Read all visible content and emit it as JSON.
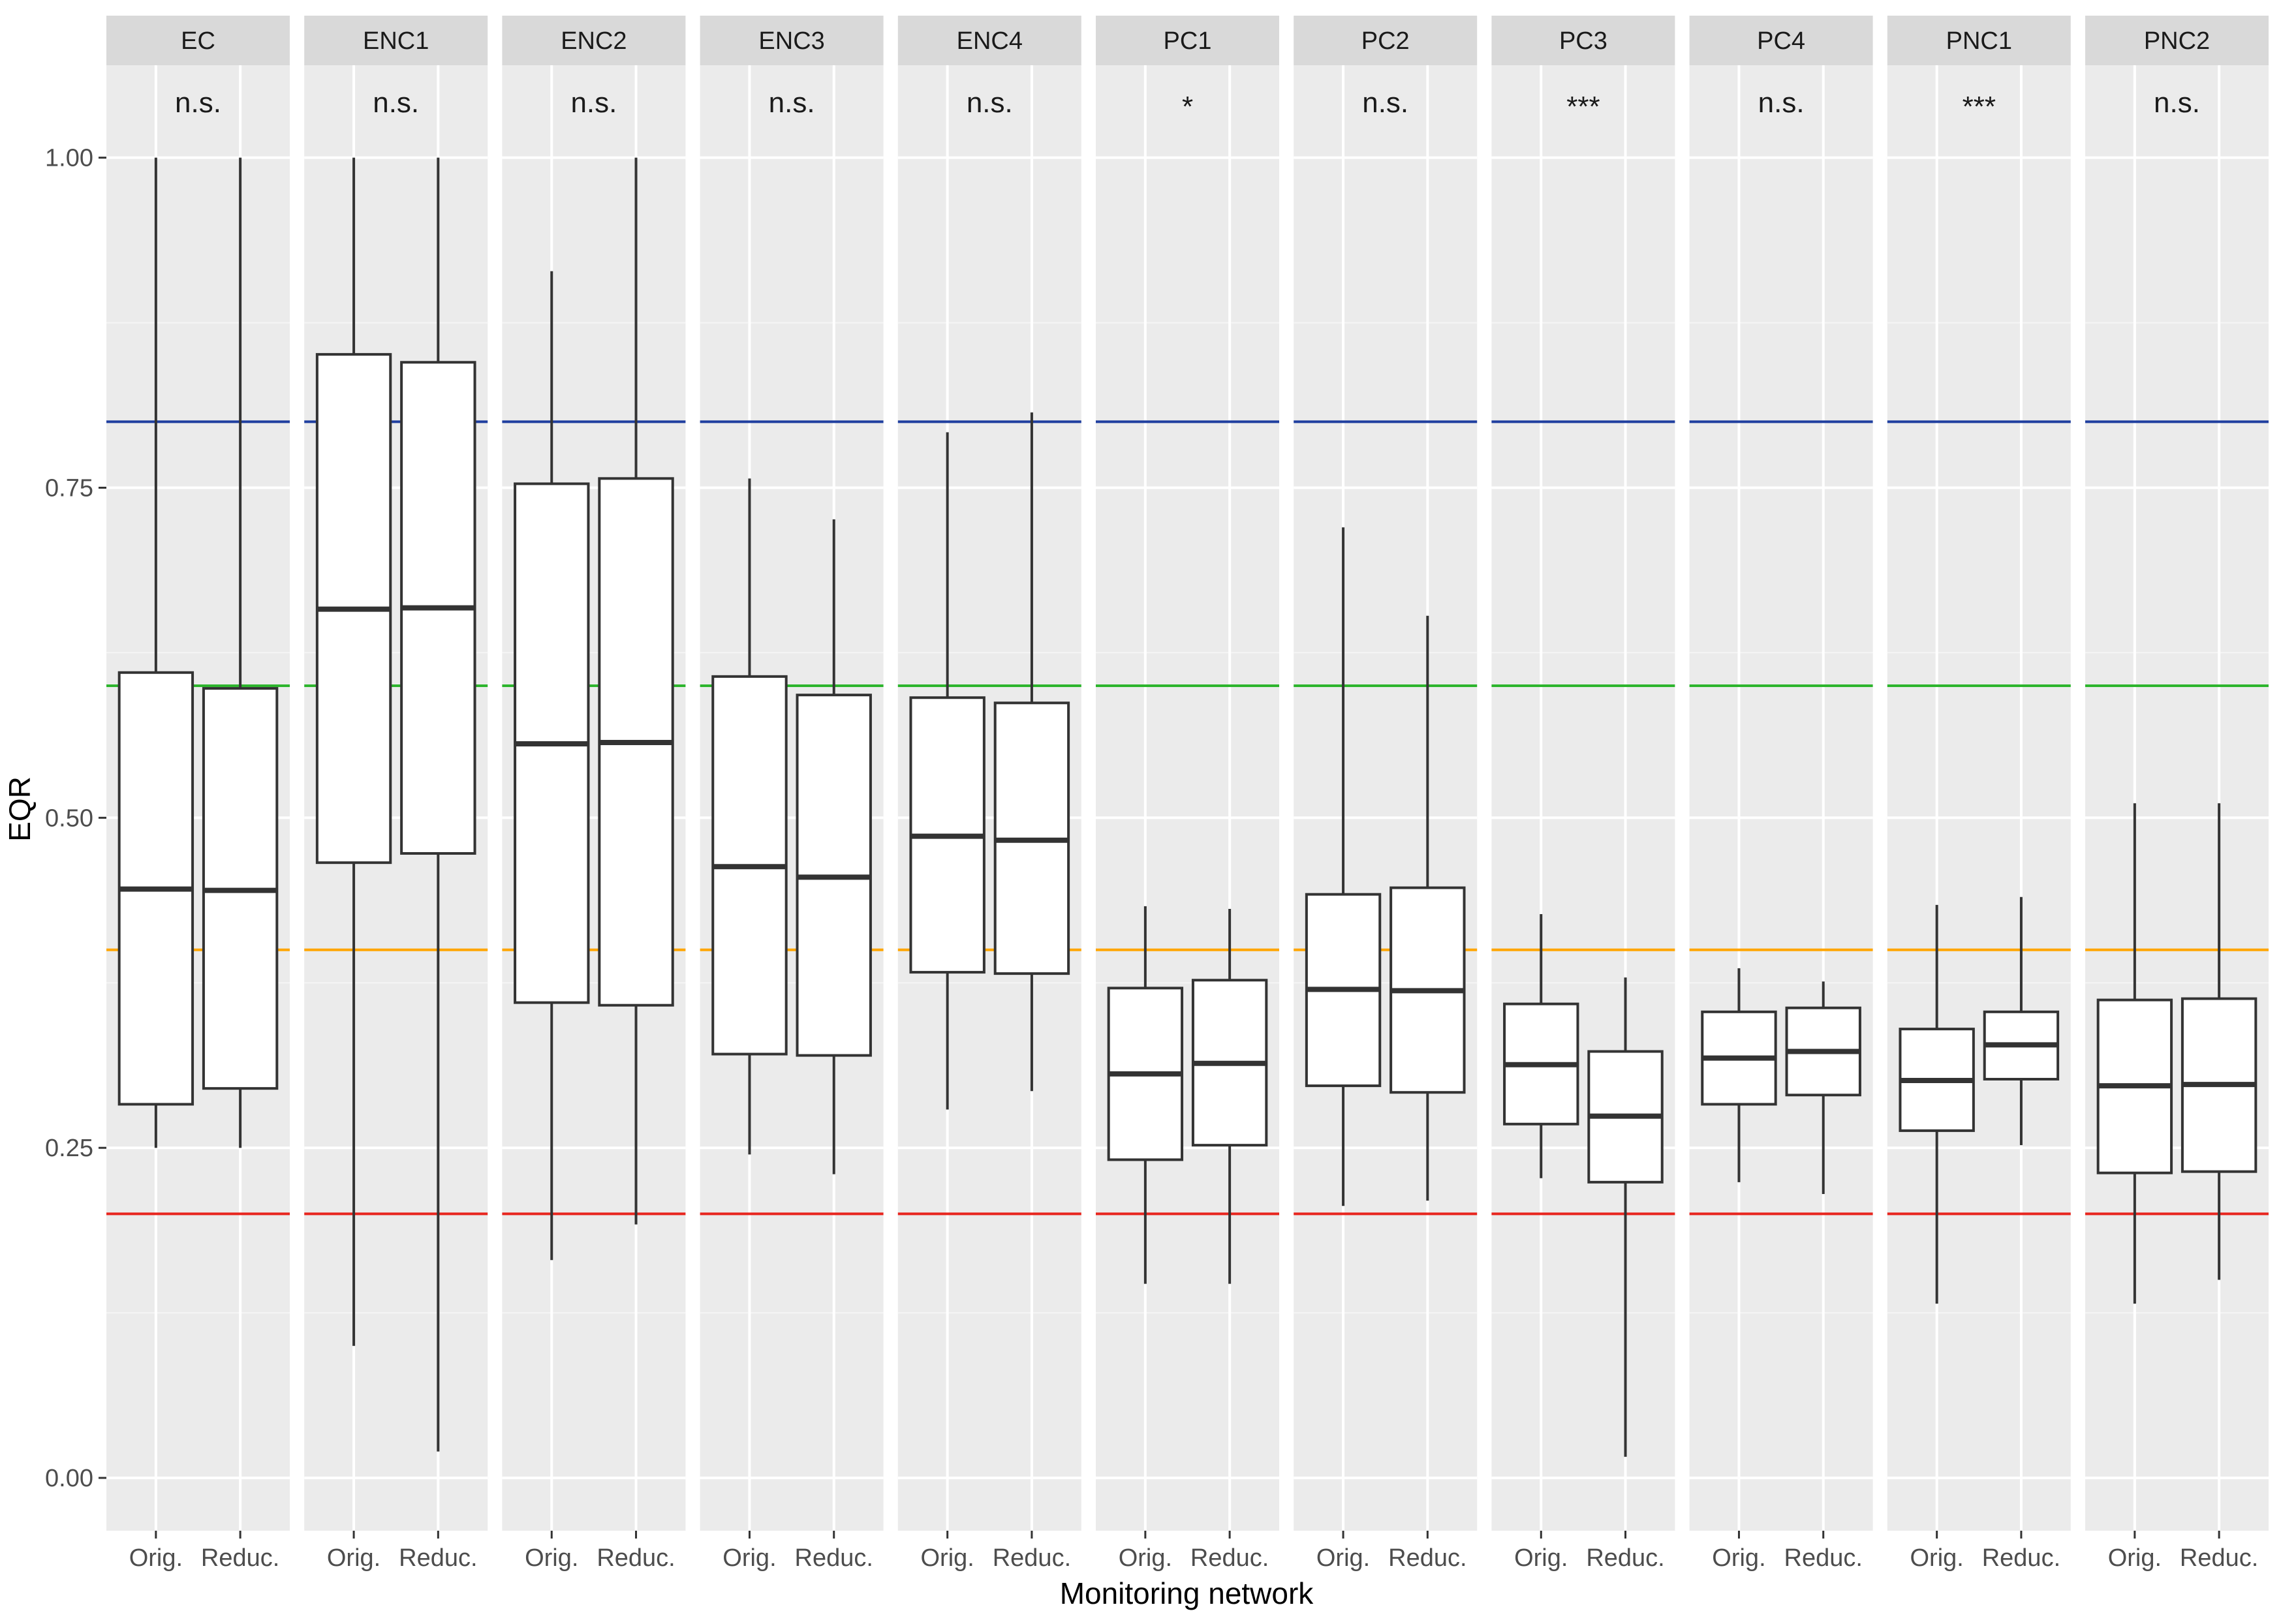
{
  "chart_data": {
    "type": "box",
    "xlabel": "Monitoring network",
    "ylabel": "EQR",
    "ylim": [
      -0.04,
      1.07
    ],
    "yticks": [
      0.0,
      0.25,
      0.5,
      0.75,
      1.0
    ],
    "ytick_labels": [
      "0.00",
      "0.25",
      "0.50",
      "0.75",
      "1.00"
    ],
    "categories": [
      "Orig.",
      "Reduc."
    ],
    "grid": true,
    "background": "#EBEBEB",
    "strip_background": "#D9D9D9",
    "reference_lines": [
      {
        "y": 0.8,
        "color": "#1F3F9F"
      },
      {
        "y": 0.6,
        "color": "#2DB52D"
      },
      {
        "y": 0.4,
        "color": "#FFA500"
      },
      {
        "y": 0.2,
        "color": "#E8251E"
      }
    ],
    "panels": [
      {
        "name": "EC",
        "significance": "n.s.",
        "boxes": [
          {
            "group": "Orig.",
            "lower_whisker": 0.25,
            "q1": 0.283,
            "median": 0.446,
            "q3": 0.61,
            "upper_whisker": 1.0
          },
          {
            "group": "Reduc.",
            "lower_whisker": 0.25,
            "q1": 0.295,
            "median": 0.445,
            "q3": 0.598,
            "upper_whisker": 1.0
          }
        ]
      },
      {
        "name": "ENC1",
        "significance": "n.s.",
        "boxes": [
          {
            "group": "Orig.",
            "lower_whisker": 0.1,
            "q1": 0.466,
            "median": 0.658,
            "q3": 0.851,
            "upper_whisker": 1.0
          },
          {
            "group": "Reduc.",
            "lower_whisker": 0.02,
            "q1": 0.473,
            "median": 0.659,
            "q3": 0.845,
            "upper_whisker": 1.0
          }
        ]
      },
      {
        "name": "ENC2",
        "significance": "n.s.",
        "boxes": [
          {
            "group": "Orig.",
            "lower_whisker": 0.165,
            "q1": 0.36,
            "median": 0.556,
            "q3": 0.753,
            "upper_whisker": 0.914
          },
          {
            "group": "Reduc.",
            "lower_whisker": 0.192,
            "q1": 0.358,
            "median": 0.557,
            "q3": 0.757,
            "upper_whisker": 1.0
          }
        ]
      },
      {
        "name": "ENC3",
        "significance": "n.s.",
        "boxes": [
          {
            "group": "Orig.",
            "lower_whisker": 0.245,
            "q1": 0.321,
            "median": 0.463,
            "q3": 0.607,
            "upper_whisker": 0.757
          },
          {
            "group": "Reduc.",
            "lower_whisker": 0.23,
            "q1": 0.32,
            "median": 0.455,
            "q3": 0.593,
            "upper_whisker": 0.726
          }
        ]
      },
      {
        "name": "ENC4",
        "significance": "n.s.",
        "boxes": [
          {
            "group": "Orig.",
            "lower_whisker": 0.279,
            "q1": 0.383,
            "median": 0.486,
            "q3": 0.591,
            "upper_whisker": 0.792
          },
          {
            "group": "Reduc.",
            "lower_whisker": 0.293,
            "q1": 0.382,
            "median": 0.483,
            "q3": 0.587,
            "upper_whisker": 0.807
          }
        ]
      },
      {
        "name": "PC1",
        "significance": "*",
        "boxes": [
          {
            "group": "Orig.",
            "lower_whisker": 0.147,
            "q1": 0.241,
            "median": 0.306,
            "q3": 0.371,
            "upper_whisker": 0.433
          },
          {
            "group": "Reduc.",
            "lower_whisker": 0.147,
            "q1": 0.252,
            "median": 0.314,
            "q3": 0.377,
            "upper_whisker": 0.431
          }
        ]
      },
      {
        "name": "PC2",
        "significance": "n.s.",
        "boxes": [
          {
            "group": "Orig.",
            "lower_whisker": 0.206,
            "q1": 0.297,
            "median": 0.37,
            "q3": 0.442,
            "upper_whisker": 0.72
          },
          {
            "group": "Reduc.",
            "lower_whisker": 0.21,
            "q1": 0.292,
            "median": 0.369,
            "q3": 0.447,
            "upper_whisker": 0.653
          }
        ]
      },
      {
        "name": "PC3",
        "significance": "***",
        "boxes": [
          {
            "group": "Orig.",
            "lower_whisker": 0.227,
            "q1": 0.268,
            "median": 0.313,
            "q3": 0.359,
            "upper_whisker": 0.427
          },
          {
            "group": "Reduc.",
            "lower_whisker": 0.016,
            "q1": 0.224,
            "median": 0.274,
            "q3": 0.323,
            "upper_whisker": 0.379
          }
        ]
      },
      {
        "name": "PC4",
        "significance": "n.s.",
        "boxes": [
          {
            "group": "Orig.",
            "lower_whisker": 0.224,
            "q1": 0.283,
            "median": 0.318,
            "q3": 0.353,
            "upper_whisker": 0.386
          },
          {
            "group": "Reduc.",
            "lower_whisker": 0.215,
            "q1": 0.29,
            "median": 0.323,
            "q3": 0.356,
            "upper_whisker": 0.376
          }
        ]
      },
      {
        "name": "PNC1",
        "significance": "***",
        "boxes": [
          {
            "group": "Orig.",
            "lower_whisker": 0.132,
            "q1": 0.263,
            "median": 0.301,
            "q3": 0.34,
            "upper_whisker": 0.434
          },
          {
            "group": "Reduc.",
            "lower_whisker": 0.252,
            "q1": 0.302,
            "median": 0.328,
            "q3": 0.353,
            "upper_whisker": 0.44
          }
        ]
      },
      {
        "name": "PNC2",
        "significance": "n.s.",
        "boxes": [
          {
            "group": "Orig.",
            "lower_whisker": 0.132,
            "q1": 0.231,
            "median": 0.297,
            "q3": 0.362,
            "upper_whisker": 0.511
          },
          {
            "group": "Reduc.",
            "lower_whisker": 0.15,
            "q1": 0.232,
            "median": 0.298,
            "q3": 0.363,
            "upper_whisker": 0.511
          }
        ]
      }
    ]
  }
}
